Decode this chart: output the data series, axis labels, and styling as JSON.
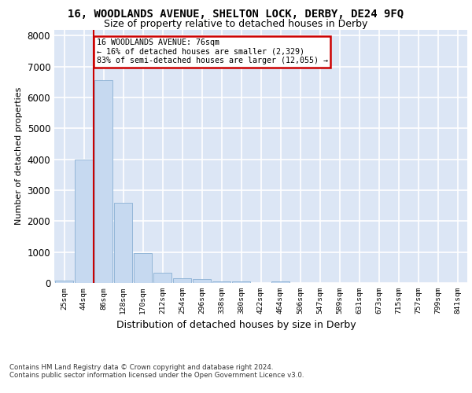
{
  "title1": "16, WOODLANDS AVENUE, SHELTON LOCK, DERBY, DE24 9FQ",
  "title2": "Size of property relative to detached houses in Derby",
  "xlabel": "Distribution of detached houses by size in Derby",
  "ylabel": "Number of detached properties",
  "footnote": "Contains HM Land Registry data © Crown copyright and database right 2024.\nContains public sector information licensed under the Open Government Licence v3.0.",
  "bin_labels": [
    "25sqm",
    "44sqm",
    "86sqm",
    "128sqm",
    "170sqm",
    "212sqm",
    "254sqm",
    "296sqm",
    "338sqm",
    "380sqm",
    "422sqm",
    "464sqm",
    "506sqm",
    "547sqm",
    "589sqm",
    "631sqm",
    "673sqm",
    "715sqm",
    "757sqm",
    "799sqm",
    "841sqm"
  ],
  "bar_values": [
    80,
    4000,
    6550,
    2600,
    960,
    330,
    140,
    120,
    60,
    60,
    0,
    60,
    0,
    0,
    0,
    0,
    0,
    0,
    0,
    0,
    0
  ],
  "bar_color": "#c6d9f0",
  "bar_edge_color": "#8ab0d4",
  "redline_label": "16 WOODLANDS AVENUE: 76sqm",
  "annotation_line1": "← 16% of detached houses are smaller (2,329)",
  "annotation_line2": "83% of semi-detached houses are larger (12,055) →",
  "annotation_box_color": "#ffffff",
  "annotation_box_edge": "#cc0000",
  "redline_color": "#cc0000",
  "ylim": [
    0,
    8200
  ],
  "yticks": [
    0,
    1000,
    2000,
    3000,
    4000,
    5000,
    6000,
    7000,
    8000
  ],
  "background_color": "#dce6f5",
  "grid_color": "#ffffff",
  "title1_fontsize": 10,
  "title2_fontsize": 9
}
